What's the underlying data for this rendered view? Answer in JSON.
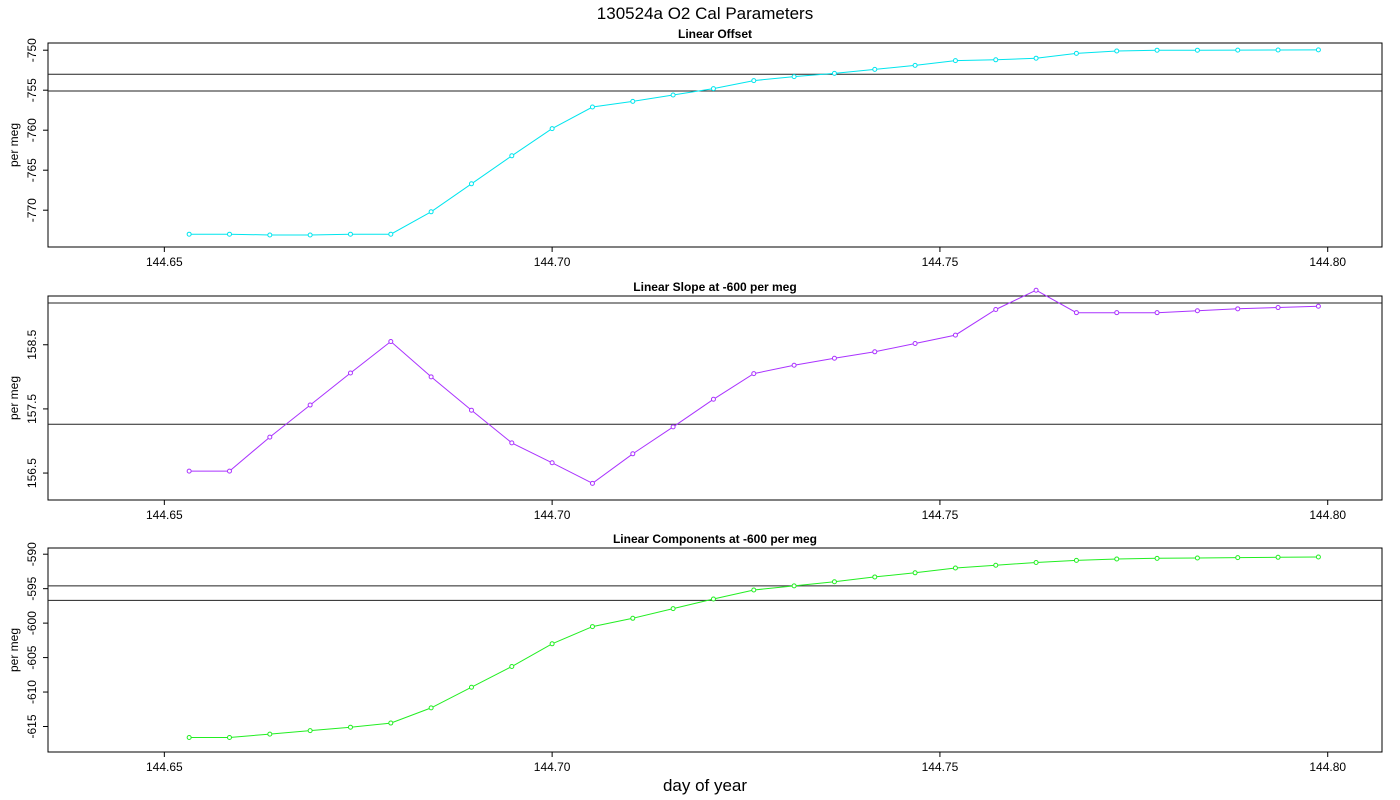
{
  "title": "130524a   O2 Cal Parameters",
  "xlabel": "day of year",
  "chart_data": [
    {
      "type": "line",
      "title": "Linear Offset",
      "ylabel": "per meg",
      "color": "#00e5ee",
      "xlim": [
        144.635,
        144.807
      ],
      "ylim": [
        -774.6,
        -749.1
      ],
      "xticks": [
        144.65,
        144.7,
        144.75,
        144.8
      ],
      "xtick_labels": [
        "144.65",
        "144.70",
        "144.75",
        "144.80"
      ],
      "yticks": [
        -750,
        -755,
        -760,
        -765,
        -770
      ],
      "ytick_labels": [
        "-750",
        "-755",
        "-760",
        "-765",
        "-770"
      ],
      "hlines": [
        -753.0,
        -755.1
      ],
      "x": [
        144.6532,
        144.6584,
        144.6636,
        144.6688,
        144.674,
        144.6792,
        144.6844,
        144.6896,
        144.6948,
        144.7,
        144.7052,
        144.7104,
        144.7156,
        144.7208,
        144.726,
        144.7312,
        144.7364,
        144.7416,
        144.7468,
        144.752,
        144.7572,
        144.7624,
        144.7676,
        144.7728,
        144.778,
        144.7832,
        144.7884,
        144.7936,
        144.7988
      ],
      "series": [
        {
          "values": [
            -773.0,
            -773.0,
            -773.1,
            -773.1,
            -773.0,
            -773.0,
            -770.2,
            -766.7,
            -763.2,
            -759.8,
            -757.1,
            -756.4,
            -755.6,
            -754.8,
            -753.8,
            -753.3,
            -752.9,
            -752.4,
            -751.9,
            -751.3,
            -751.2,
            -751.0,
            -750.4,
            -750.1,
            -750.0,
            -750.0,
            -749.99,
            -749.98,
            -749.96
          ]
        }
      ]
    },
    {
      "type": "line",
      "title": "Linear Slope at -600 per meg",
      "ylabel": "per meg",
      "color": "#aa33ff",
      "xlim": [
        144.635,
        144.807
      ],
      "ylim": [
        156.08,
        159.26
      ],
      "xticks": [
        144.65,
        144.7,
        144.75,
        144.8
      ],
      "xtick_labels": [
        "144.65",
        "144.70",
        "144.75",
        "144.80"
      ],
      "yticks": [
        156.5,
        157.5,
        158.5
      ],
      "ytick_labels": [
        "156.5",
        "157.5",
        "158.5"
      ],
      "hlines": [
        159.15,
        157.26
      ],
      "x": [
        144.6532,
        144.6584,
        144.6636,
        144.6688,
        144.674,
        144.6792,
        144.6844,
        144.6896,
        144.6948,
        144.7,
        144.7052,
        144.7104,
        144.7156,
        144.7208,
        144.726,
        144.7312,
        144.7364,
        144.7416,
        144.7468,
        144.752,
        144.7572,
        144.7624,
        144.7676,
        144.7728,
        144.778,
        144.7832,
        144.7884,
        144.7936,
        144.7988
      ],
      "series": [
        {
          "values": [
            156.53,
            156.53,
            157.06,
            157.56,
            158.06,
            158.55,
            158.0,
            157.48,
            156.97,
            156.66,
            156.34,
            156.8,
            157.22,
            157.65,
            158.05,
            158.18,
            158.29,
            158.39,
            158.52,
            158.65,
            159.05,
            159.35,
            159.0,
            159.0,
            159.0,
            159.03,
            159.06,
            159.08,
            159.1
          ]
        }
      ]
    },
    {
      "type": "line",
      "title": "Linear Components at -600 per meg",
      "ylabel": "per meg",
      "color": "#22ee22",
      "xlim": [
        144.635,
        144.807
      ],
      "ylim": [
        -618.7,
        -589.1
      ],
      "xticks": [
        144.65,
        144.7,
        144.75,
        144.8
      ],
      "xtick_labels": [
        "144.65",
        "144.70",
        "144.75",
        "144.80"
      ],
      "yticks": [
        -590,
        -595,
        -600,
        -605,
        -610,
        -615
      ],
      "ytick_labels": [
        "-590",
        "-595",
        "-600",
        "-605",
        "-610",
        "-615"
      ],
      "hlines": [
        -594.6,
        -596.7
      ],
      "x": [
        144.6532,
        144.6584,
        144.6636,
        144.6688,
        144.674,
        144.6792,
        144.6844,
        144.6896,
        144.6948,
        144.7,
        144.7052,
        144.7104,
        144.7156,
        144.7208,
        144.726,
        144.7312,
        144.7364,
        144.7416,
        144.7468,
        144.752,
        144.7572,
        144.7624,
        144.7676,
        144.7728,
        144.778,
        144.7832,
        144.7884,
        144.7936,
        144.7988
      ],
      "series": [
        {
          "values": [
            -616.6,
            -616.6,
            -616.1,
            -615.6,
            -615.1,
            -614.5,
            -612.3,
            -609.3,
            -606.3,
            -603.0,
            -600.5,
            -599.3,
            -597.9,
            -596.5,
            -595.2,
            -594.6,
            -594.0,
            -593.3,
            -592.7,
            -592.0,
            -591.6,
            -591.2,
            -590.9,
            -590.7,
            -590.6,
            -590.55,
            -590.5,
            -590.45,
            -590.4
          ]
        }
      ]
    }
  ]
}
